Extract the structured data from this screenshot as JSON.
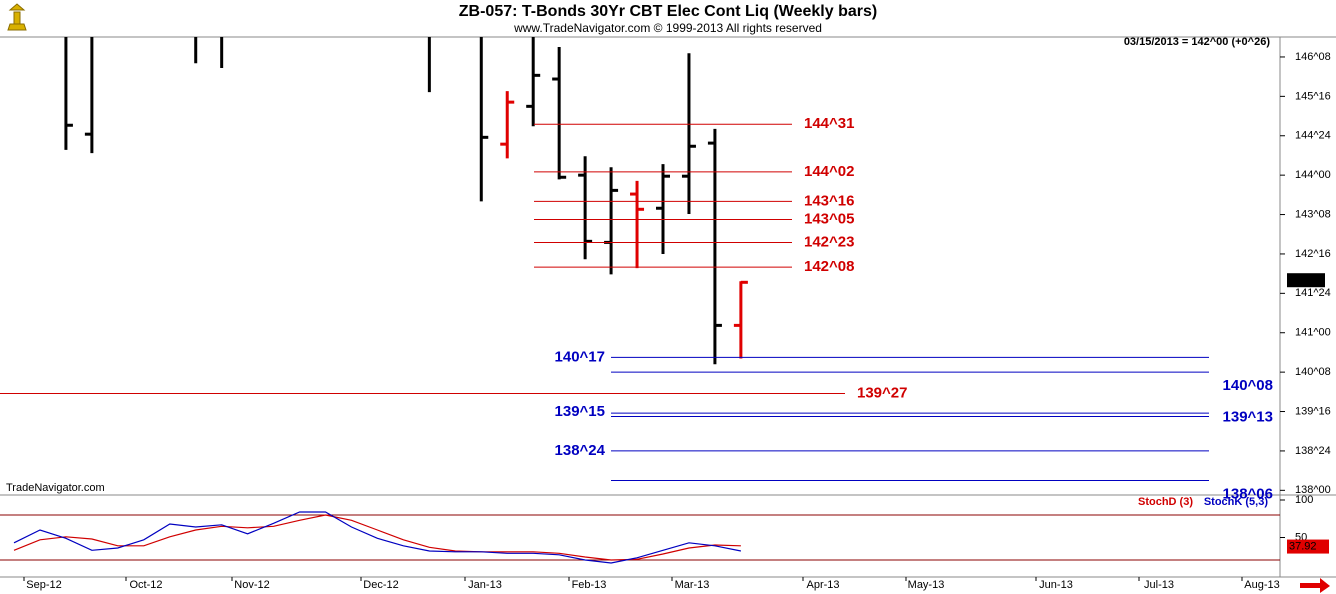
{
  "title": "ZB-057:  T-Bonds 30Yr CBT Elec Cont Liq  (Weekly bars)",
  "subtitle": "www.TradeNavigator.com © 1999-2013 All rights reserved",
  "watermark": "TradeNavigator.com",
  "chart_data": [
    {
      "type": "ohlc",
      "status": "03/15/2013 = 142^00 (+0^26)",
      "categories": [
        null,
        null,
        null,
        null,
        null,
        null,
        null,
        null,
        null,
        null,
        null,
        null,
        null,
        null,
        null,
        null,
        null,
        null,
        null,
        null,
        null,
        null,
        null,
        null,
        null,
        null,
        null,
        null,
        null
      ],
      "open": [
        null,
        null,
        null,
        144.78,
        null,
        null,
        null,
        null,
        null,
        null,
        null,
        null,
        null,
        null,
        null,
        null,
        null,
        null,
        null,
        144.59,
        145.31,
        145.83,
        144.0,
        142.72,
        143.64,
        143.37,
        143.98,
        144.61,
        141.14
      ],
      "high": [
        null,
        null,
        147,
        147,
        null,
        null,
        null,
        147,
        147,
        null,
        null,
        null,
        null,
        null,
        null,
        null,
        147,
        null,
        147,
        145.6,
        147,
        146.44,
        144.36,
        144.15,
        143.89,
        144.21,
        146.32,
        144.88,
        141.98
      ],
      "low": [
        null,
        null,
        144.48,
        144.42,
        null,
        null,
        null,
        146.13,
        146.04,
        null,
        null,
        null,
        null,
        null,
        null,
        null,
        145.58,
        null,
        143.5,
        144.32,
        144.93,
        143.92,
        142.4,
        142.11,
        142.23,
        142.5,
        143.26,
        140.4,
        140.51
      ],
      "close": [
        null,
        null,
        144.95,
        null,
        null,
        null,
        null,
        null,
        null,
        null,
        null,
        null,
        null,
        null,
        null,
        null,
        null,
        null,
        144.72,
        145.39,
        145.9,
        143.96,
        142.74,
        143.71,
        143.35,
        143.98,
        144.55,
        141.14,
        141.96
      ],
      "colors": [
        null,
        null,
        "#000000",
        "#000000",
        null,
        null,
        null,
        "#000000",
        "#000000",
        null,
        null,
        null,
        null,
        null,
        null,
        null,
        "#000000",
        null,
        "#000000",
        "#e00000",
        "#000000",
        "#000000",
        "#000000",
        "#000000",
        "#e00000",
        "#000000",
        "#000000",
        "#000000",
        "#e00000"
      ],
      "ylim": [
        137.93,
        146.63
      ],
      "yticks": [
        {
          "value": 146.25,
          "label": "146^08"
        },
        {
          "value": 145.5,
          "label": "145^16"
        },
        {
          "value": 144.75,
          "label": "144^24"
        },
        {
          "value": 144.0,
          "label": "144^00"
        },
        {
          "value": 143.25,
          "label": "143^08"
        },
        {
          "value": 142.5,
          "label": "142^16"
        },
        {
          "value": 141.75,
          "label": "141^24"
        },
        {
          "value": 141.0,
          "label": "141^00"
        },
        {
          "value": 140.25,
          "label": "140^08"
        },
        {
          "value": 139.5,
          "label": "139^16"
        },
        {
          "value": 138.75,
          "label": "138^24"
        },
        {
          "value": 138.0,
          "label": "138^00"
        }
      ],
      "last_price": {
        "value": 142.0,
        "label": "142^00"
      },
      "levels": [
        {
          "value": 144.96875,
          "label": "144^31",
          "color": "#d00000"
        },
        {
          "value": 144.0625,
          "label": "144^02",
          "color": "#d00000"
        },
        {
          "value": 143.5,
          "label": "143^16",
          "color": "#d00000"
        },
        {
          "value": 143.15625,
          "label": "143^05",
          "color": "#d00000"
        },
        {
          "value": 142.71875,
          "label": "142^23",
          "color": "#d00000"
        },
        {
          "value": 142.25,
          "label": "142^08",
          "color": "#d00000"
        },
        {
          "value": 139.84375,
          "label": "139^27",
          "color": "#d00000"
        },
        {
          "value": 140.53125,
          "label": "140^17",
          "color": "#0000c0"
        },
        {
          "value": 140.25,
          "label": "140^08",
          "color": "#0000c0"
        },
        {
          "value": 139.46875,
          "label": "139^15",
          "color": "#0000c0"
        },
        {
          "value": 139.40625,
          "label": "139^13",
          "color": "#0000c0"
        },
        {
          "value": 138.75,
          "label": "138^24",
          "color": "#0000c0"
        },
        {
          "value": 138.1875,
          "label": "138^06",
          "color": "#0000c0"
        }
      ]
    },
    {
      "type": "line",
      "categories": [
        null,
        null,
        null,
        null,
        null,
        null,
        null,
        null,
        null,
        null,
        null,
        null,
        null,
        null,
        null,
        null,
        null,
        null,
        null,
        null,
        null,
        null,
        null,
        null,
        null,
        null,
        null,
        null,
        null
      ],
      "series": [
        {
          "name": "StochD (3)",
          "color": "#d00000",
          "values": [
            33,
            47,
            51,
            48,
            39,
            39,
            51,
            60,
            65,
            63,
            65,
            73,
            80,
            73,
            60,
            47,
            37,
            32,
            31,
            31,
            31,
            29,
            24,
            20,
            21,
            28,
            36,
            40,
            39
          ]
        },
        {
          "name": "StochK (5,3)",
          "color": "#0000c0",
          "values": [
            43,
            60,
            49,
            33,
            36,
            47,
            68,
            64,
            67,
            55,
            69,
            84,
            84,
            64,
            49,
            39,
            32,
            31,
            31,
            29,
            29,
            27,
            20,
            16,
            23,
            33,
            43,
            39,
            32
          ]
        }
      ],
      "ylim": [
        0,
        100
      ],
      "yticks": [
        100,
        50
      ],
      "levels": [
        80,
        20
      ],
      "last_value": 37.92,
      "xticks": [
        "Sep-12",
        "Oct-12",
        "Nov-12",
        "Dec-12",
        "Jan-13",
        "Feb-13",
        "Mar-13",
        "Apr-13",
        "May-13",
        "Jun-13",
        "Jul-13",
        "Aug-13"
      ]
    }
  ]
}
